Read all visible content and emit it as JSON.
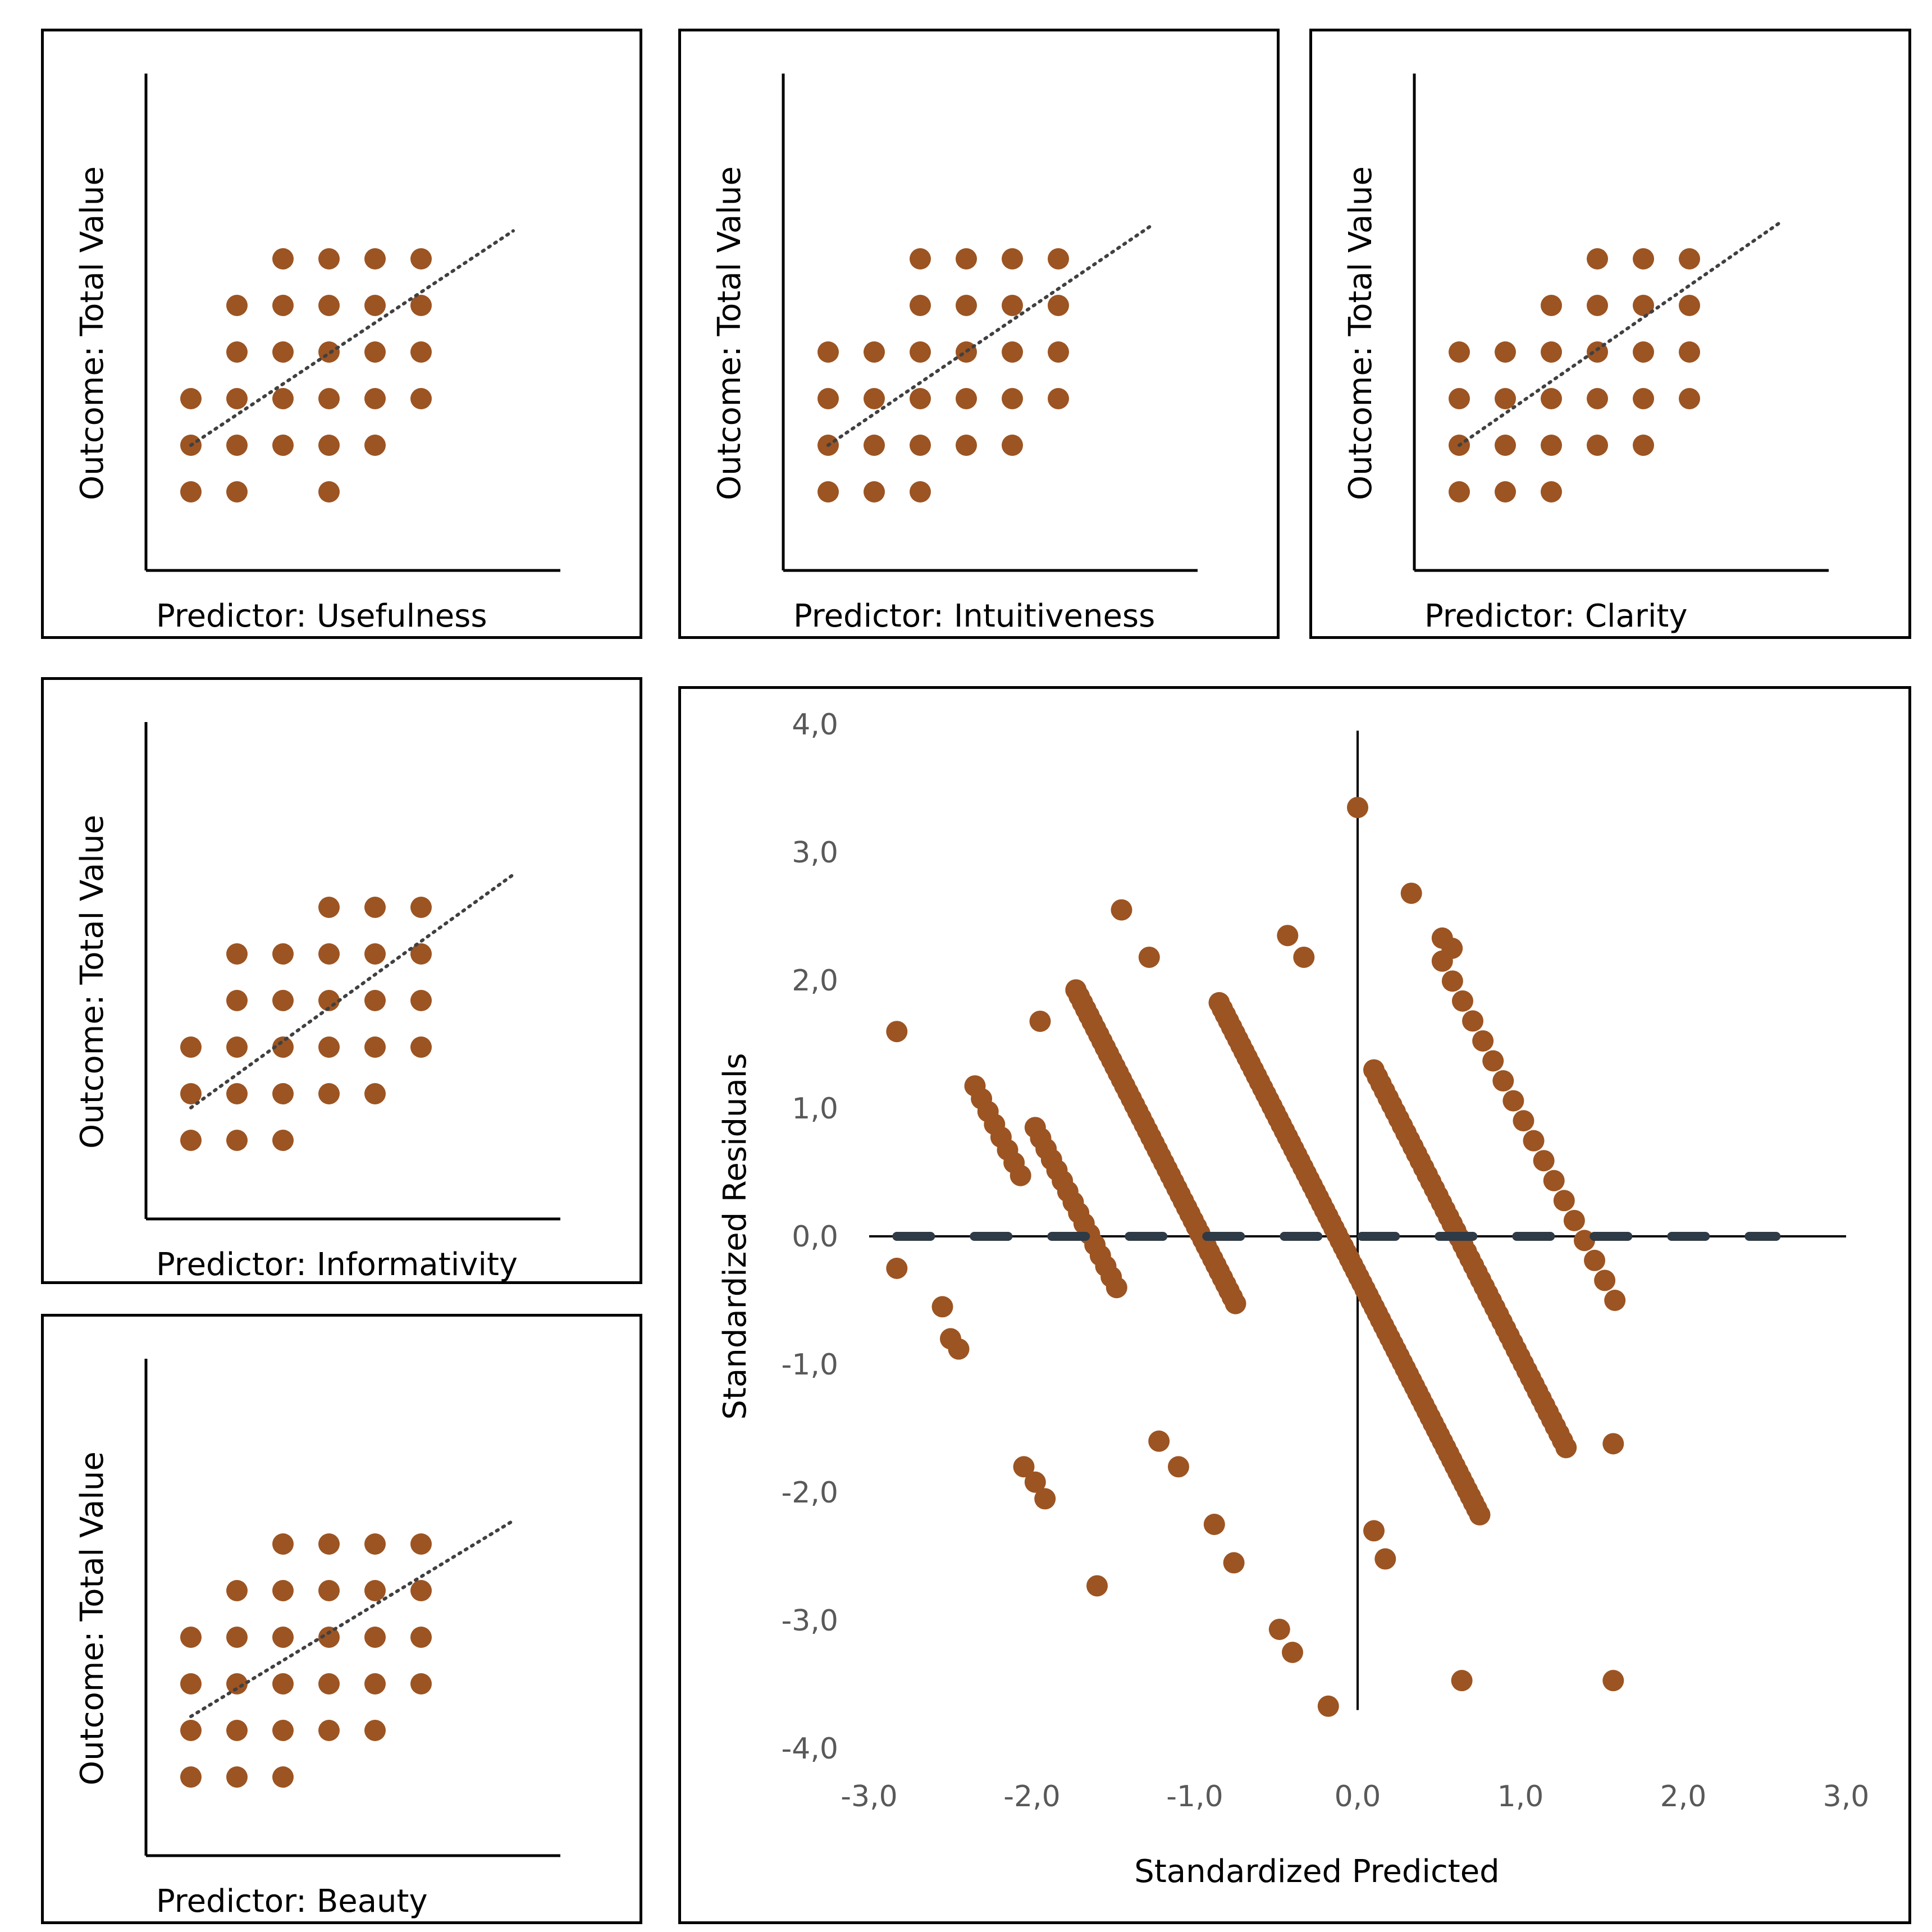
{
  "colors": {
    "marker": "#9C5422",
    "axis": "#000000",
    "trend": "#404040",
    "zero_line": "#2E3A46",
    "tick_text": "#595959"
  },
  "chart_data": [
    {
      "id": "usefulness",
      "type": "scatter",
      "xlabel": "Predictor: Usefulness",
      "ylabel": "Outcome: Total Value",
      "points": [
        [
          1,
          1
        ],
        [
          2,
          1
        ],
        [
          4,
          1
        ],
        [
          1,
          2
        ],
        [
          2,
          2
        ],
        [
          3,
          2
        ],
        [
          4,
          2
        ],
        [
          5,
          2
        ],
        [
          1,
          3
        ],
        [
          2,
          3
        ],
        [
          3,
          3
        ],
        [
          4,
          3
        ],
        [
          5,
          3
        ],
        [
          6,
          3
        ],
        [
          2,
          4
        ],
        [
          3,
          4
        ],
        [
          4,
          4
        ],
        [
          5,
          4
        ],
        [
          6,
          4
        ],
        [
          2,
          5
        ],
        [
          3,
          5
        ],
        [
          4,
          5
        ],
        [
          5,
          5
        ],
        [
          6,
          5
        ],
        [
          3,
          6
        ],
        [
          4,
          6
        ],
        [
          5,
          6
        ],
        [
          6,
          6
        ]
      ],
      "trendline": [
        [
          1,
          2
        ],
        [
          8,
          6.6
        ]
      ]
    },
    {
      "id": "intuitiveness",
      "type": "scatter",
      "xlabel": "Predictor: Intuitiveness",
      "ylabel": "Outcome: Total Value",
      "points": [
        [
          1,
          1
        ],
        [
          2,
          1
        ],
        [
          3,
          1
        ],
        [
          1,
          2
        ],
        [
          2,
          2
        ],
        [
          3,
          2
        ],
        [
          4,
          2
        ],
        [
          5,
          2
        ],
        [
          1,
          3
        ],
        [
          2,
          3
        ],
        [
          3,
          3
        ],
        [
          4,
          3
        ],
        [
          5,
          3
        ],
        [
          6,
          3
        ],
        [
          1,
          4
        ],
        [
          2,
          4
        ],
        [
          3,
          4
        ],
        [
          4,
          4
        ],
        [
          5,
          4
        ],
        [
          6,
          4
        ],
        [
          3,
          5
        ],
        [
          4,
          5
        ],
        [
          5,
          5
        ],
        [
          6,
          5
        ],
        [
          3,
          6
        ],
        [
          4,
          6
        ],
        [
          5,
          6
        ],
        [
          6,
          6
        ]
      ],
      "trendline": [
        [
          1,
          2
        ],
        [
          8,
          6.7
        ]
      ]
    },
    {
      "id": "clarity",
      "type": "scatter",
      "xlabel": "Predictor: Clarity",
      "ylabel": "Outcome: Total Value",
      "points": [
        [
          1,
          1
        ],
        [
          2,
          1
        ],
        [
          3,
          1
        ],
        [
          1,
          2
        ],
        [
          2,
          2
        ],
        [
          3,
          2
        ],
        [
          4,
          2
        ],
        [
          5,
          2
        ],
        [
          1,
          3
        ],
        [
          2,
          3
        ],
        [
          3,
          3
        ],
        [
          4,
          3
        ],
        [
          5,
          3
        ],
        [
          6,
          3
        ],
        [
          1,
          4
        ],
        [
          2,
          4
        ],
        [
          3,
          4
        ],
        [
          4,
          4
        ],
        [
          5,
          4
        ],
        [
          6,
          4
        ],
        [
          3,
          5
        ],
        [
          4,
          5
        ],
        [
          5,
          5
        ],
        [
          6,
          5
        ],
        [
          4,
          6
        ],
        [
          5,
          6
        ],
        [
          6,
          6
        ]
      ],
      "trendline": [
        [
          1,
          2
        ],
        [
          8,
          6.8
        ]
      ]
    },
    {
      "id": "informativity",
      "type": "scatter",
      "xlabel": "Predictor: Informativity",
      "ylabel": "Outcome: Total Value",
      "points": [
        [
          1,
          1
        ],
        [
          2,
          1
        ],
        [
          3,
          1
        ],
        [
          1,
          2
        ],
        [
          2,
          2
        ],
        [
          3,
          2
        ],
        [
          4,
          2
        ],
        [
          5,
          2
        ],
        [
          1,
          3
        ],
        [
          2,
          3
        ],
        [
          3,
          3
        ],
        [
          4,
          3
        ],
        [
          5,
          3
        ],
        [
          6,
          3
        ],
        [
          2,
          4
        ],
        [
          3,
          4
        ],
        [
          4,
          4
        ],
        [
          5,
          4
        ],
        [
          6,
          4
        ],
        [
          2,
          5
        ],
        [
          3,
          5
        ],
        [
          4,
          5
        ],
        [
          5,
          5
        ],
        [
          6,
          5
        ],
        [
          4,
          6
        ],
        [
          5,
          6
        ],
        [
          6,
          6
        ]
      ],
      "trendline": [
        [
          1,
          1.7
        ],
        [
          8,
          6.7
        ]
      ]
    },
    {
      "id": "beauty",
      "type": "scatter",
      "xlabel": "Predictor: Beauty",
      "ylabel": "Outcome: Total Value",
      "points": [
        [
          1,
          1
        ],
        [
          2,
          1
        ],
        [
          3,
          1
        ],
        [
          1,
          2
        ],
        [
          2,
          2
        ],
        [
          3,
          2
        ],
        [
          4,
          2
        ],
        [
          5,
          2
        ],
        [
          1,
          3
        ],
        [
          2,
          3
        ],
        [
          3,
          3
        ],
        [
          4,
          3
        ],
        [
          5,
          3
        ],
        [
          6,
          3
        ],
        [
          1,
          4
        ],
        [
          2,
          4
        ],
        [
          3,
          4
        ],
        [
          4,
          4
        ],
        [
          5,
          4
        ],
        [
          6,
          4
        ],
        [
          2,
          5
        ],
        [
          3,
          5
        ],
        [
          4,
          5
        ],
        [
          5,
          5
        ],
        [
          6,
          5
        ],
        [
          3,
          6
        ],
        [
          4,
          6
        ],
        [
          5,
          6
        ],
        [
          6,
          6
        ]
      ],
      "trendline": [
        [
          1,
          2.3
        ],
        [
          8,
          6.5
        ]
      ]
    },
    {
      "id": "residuals",
      "type": "scatter",
      "xlabel": "Standardized Predicted",
      "ylabel": "Standardized Residuals",
      "xlim": [
        -3,
        3
      ],
      "ylim": [
        -4,
        4
      ],
      "xticks": [
        "-3,0",
        "-2,0",
        "-1,0",
        "0,0",
        "1,0",
        "2,0",
        "3,0"
      ],
      "yticks": [
        "-4,0",
        "-3,0",
        "-2,0",
        "-1,0",
        "0,0",
        "1,0",
        "2,0",
        "3,0",
        "4,0"
      ],
      "reference_line_y": 0,
      "lines": [
        {
          "x_range": [
            -2.35,
            -2.07
          ],
          "intercept": -4.7,
          "n": 8
        },
        {
          "x_range": [
            -1.98,
            -1.48
          ],
          "intercept": -4.1,
          "n": 16
        },
        {
          "x_range": [
            -1.73,
            -0.75
          ],
          "intercept": -2.4,
          "n": 50
        },
        {
          "x_range": [
            -0.85,
            0.75
          ],
          "intercept": -0.3,
          "n": 85
        },
        {
          "x_range": [
            0.1,
            1.28
          ],
          "intercept": 1.55,
          "n": 55
        },
        {
          "x_range": [
            0.52,
            1.58
          ],
          "intercept": 3.45,
          "n": 18
        }
      ],
      "points": [
        [
          -2.83,
          1.6
        ],
        [
          -2.83,
          -0.25
        ],
        [
          -2.55,
          -0.55
        ],
        [
          -2.5,
          -0.8
        ],
        [
          -2.45,
          -0.88
        ],
        [
          -1.95,
          1.68
        ],
        [
          -2.05,
          -1.8
        ],
        [
          -1.98,
          -1.92
        ],
        [
          -1.92,
          -2.05
        ],
        [
          -1.6,
          -2.73
        ],
        [
          -1.45,
          2.55
        ],
        [
          -1.28,
          2.18
        ],
        [
          -1.22,
          -1.6
        ],
        [
          -1.1,
          -1.8
        ],
        [
          -0.88,
          -2.25
        ],
        [
          -0.76,
          -2.55
        ],
        [
          -0.43,
          2.35
        ],
        [
          -0.33,
          2.18
        ],
        [
          -0.48,
          -3.07
        ],
        [
          -0.4,
          -3.25
        ],
        [
          -0.18,
          -3.67
        ],
        [
          0.0,
          3.35
        ],
        [
          0.1,
          -2.3
        ],
        [
          0.17,
          -2.52
        ],
        [
          0.33,
          2.68
        ],
        [
          0.52,
          2.33
        ],
        [
          0.58,
          2.25
        ],
        [
          0.64,
          -3.47
        ],
        [
          1.57,
          -3.47
        ],
        [
          1.57,
          -1.62
        ]
      ]
    }
  ]
}
